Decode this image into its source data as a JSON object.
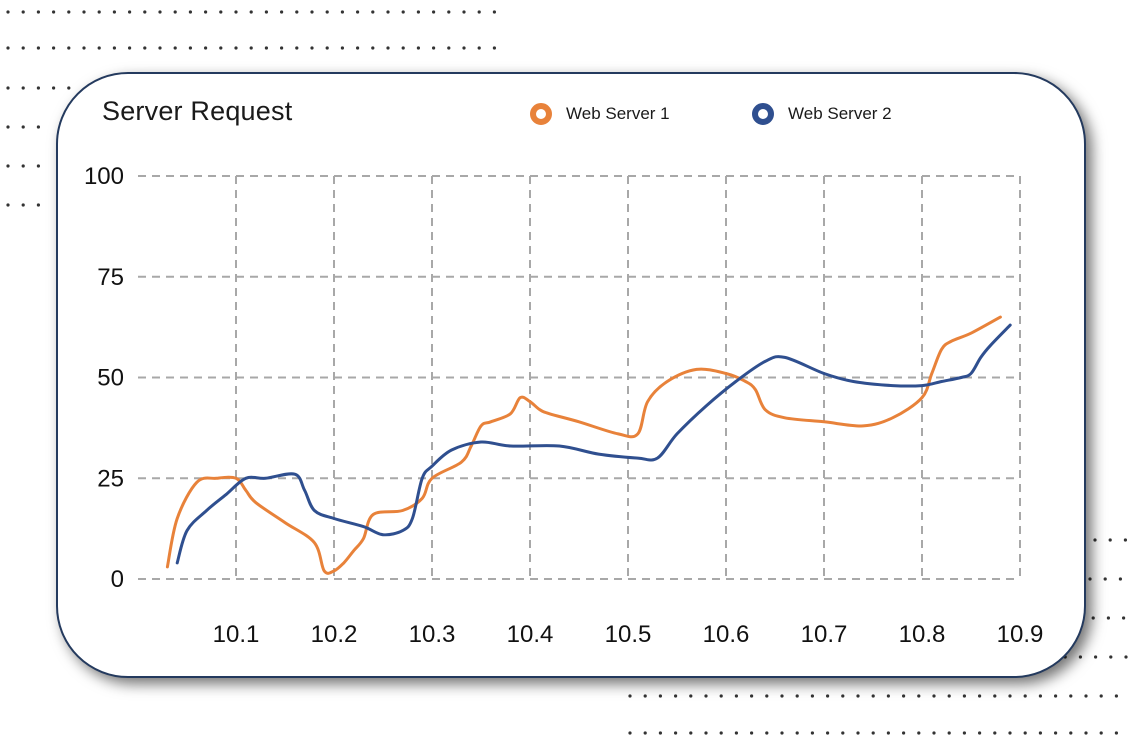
{
  "chart_data": {
    "type": "line",
    "title": "Server Request",
    "xlabel": "",
    "ylabel": "",
    "ylim": [
      0,
      100
    ],
    "xlim": [
      10.0,
      10.9
    ],
    "yticks": [
      "0",
      "25",
      "50",
      "75",
      "100"
    ],
    "xticks": [
      "10.1",
      "10.2",
      "10.3",
      "10.4",
      "10.5",
      "10.6",
      "10.7",
      "10.8",
      "10.9"
    ],
    "grid": true,
    "legend_position": "top",
    "series": [
      {
        "name": "Web Server 1",
        "color": "#e8823a",
        "x": [
          10.03,
          10.04,
          10.06,
          10.08,
          10.1,
          10.11,
          10.12,
          10.15,
          10.18,
          10.19,
          10.2,
          10.21,
          10.22,
          10.23,
          10.24,
          10.27,
          10.29,
          10.3,
          10.33,
          10.34,
          10.35,
          10.36,
          10.38,
          10.39,
          10.4,
          10.41,
          10.42,
          10.45,
          10.49,
          10.51,
          10.52,
          10.54,
          10.57,
          10.6,
          10.62,
          10.63,
          10.64,
          10.66,
          10.7,
          10.74,
          10.77,
          10.8,
          10.81,
          10.82,
          10.83,
          10.85,
          10.88
        ],
        "values": [
          3,
          15,
          24,
          25,
          25,
          22,
          19,
          14,
          9,
          2,
          2,
          4,
          7,
          10,
          16,
          17,
          20,
          25,
          29,
          33,
          38,
          39,
          41,
          45,
          44,
          42,
          41,
          39,
          36,
          36,
          44,
          49,
          52,
          51,
          49,
          47,
          42,
          40,
          39,
          38,
          40,
          45,
          51,
          57,
          59,
          61,
          65
        ]
      },
      {
        "name": "Web Server 2",
        "color": "#2f4f8f",
        "x": [
          10.04,
          10.05,
          10.07,
          10.09,
          10.11,
          10.13,
          10.16,
          10.17,
          10.18,
          10.2,
          10.23,
          10.25,
          10.27,
          10.28,
          10.29,
          10.3,
          10.32,
          10.35,
          10.38,
          10.43,
          10.47,
          10.51,
          10.53,
          10.55,
          10.58,
          10.61,
          10.64,
          10.66,
          10.7,
          10.73,
          10.77,
          10.8,
          10.82,
          10.84,
          10.85,
          10.86,
          10.87,
          10.89
        ],
        "values": [
          4,
          12,
          17,
          21,
          25,
          25,
          26,
          22,
          17,
          15,
          13,
          11,
          12,
          15,
          25,
          28,
          32,
          34,
          33,
          33,
          31,
          30,
          30,
          36,
          43,
          49,
          54,
          55,
          51,
          49,
          48,
          48,
          49,
          50,
          51,
          55,
          58,
          63
        ]
      }
    ]
  }
}
